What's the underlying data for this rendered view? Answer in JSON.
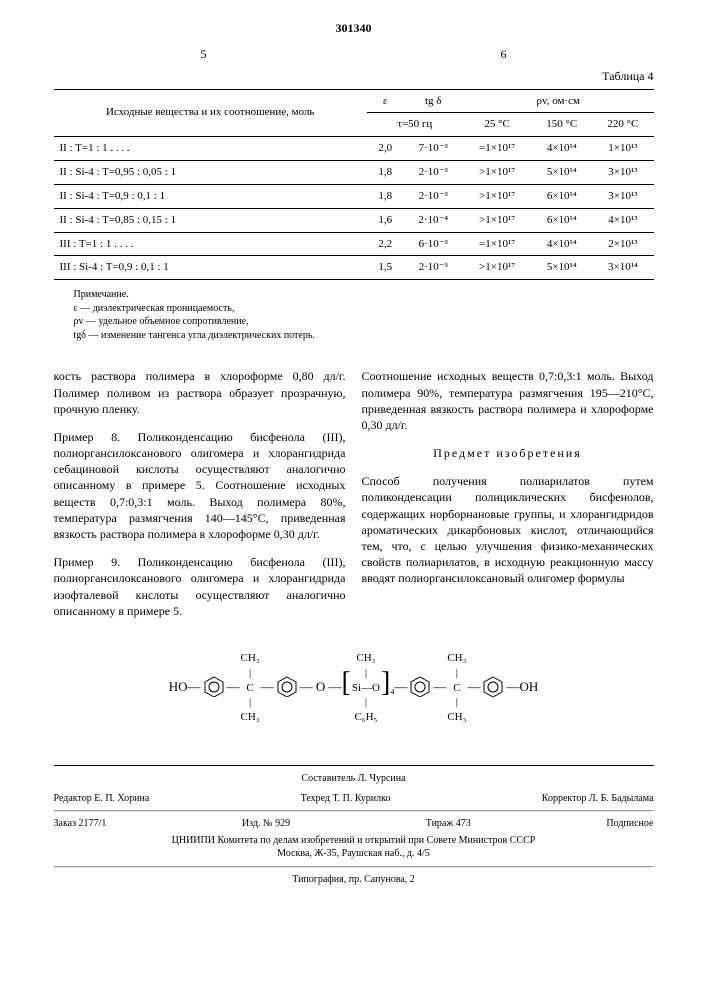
{
  "doc_number": "301340",
  "col_left_num": "5",
  "col_right_num": "6",
  "table_label": "Таблица 4",
  "table": {
    "head1": "Исходные вещества и их соотношение, моль",
    "head2": "ε",
    "head3": "tg δ",
    "head4": "ρv, ом·см",
    "subhead_tau": "τ=50 гц",
    "sub25": "25 °C",
    "sub150": "150 °C",
    "sub220": "220 °C",
    "rows": [
      {
        "c0": "II : T=1 : 1 . . . .",
        "c1": "2,0",
        "c2": "7·10⁻³",
        "c3": "=1×10¹⁷",
        "c4": "4×10¹⁴",
        "c5": "1×10¹³"
      },
      {
        "c0": "II : Si-4 : T=0,95 : 0,05 : 1",
        "c1": "1,8",
        "c2": "2·10⁻³",
        "c3": ">1×10¹⁷",
        "c4": "5×10¹⁴",
        "c5": "3×10¹³"
      },
      {
        "c0": "II : Si-4 : T=0,9 : 0,1 : 1",
        "c1": "1,8",
        "c2": "2·10⁻³",
        "c3": ">1×10¹⁷",
        "c4": "6×10¹⁴",
        "c5": "3×10¹³"
      },
      {
        "c0": "II : Si-4 : T=0,85 : 0,15 : 1",
        "c1": "1,6",
        "c2": "2·10⁻⁴",
        "c3": ">1×10¹⁷",
        "c4": "6×10¹⁴",
        "c5": "4×10¹³"
      },
      {
        "c0": "III : T=1 : 1 . . . .",
        "c1": "2,2",
        "c2": "6·10⁻³",
        "c3": "=1×10¹⁷",
        "c4": "4×10¹⁴",
        "c5": "2×10¹³"
      },
      {
        "c0": "III : Si-4 : T=0,9 : 0,1 : 1",
        "c1": "1,5",
        "c2": "2·10⁻³",
        "c3": ">1×10¹⁷",
        "c4": "5×10¹⁴",
        "c5": "3×10¹⁴"
      }
    ]
  },
  "note_title": "Примечание.",
  "note_l1": "ε — диэлектрическая проницаемость,",
  "note_l2": "ρv — удельное объемное сопротивление,",
  "note_l3": "tgδ — изменение тангенса угла диэлектрических потерь.",
  "left_p1": "кость раствора полимера в хлороформе 0,80 дл/г. Полимер поливом из раствора образует прозрачную, прочную пленку.",
  "left_p2": "Пример 8. Поликонденсацию бисфенола (III), полиоргансилоксанового олигомера и хлорангидрида себациновой кислоты осуществляют аналогично описанному в примере 5. Соотношение исходных веществ 0,7:0,3:1 моль. Выход полимера 80%, температура размягчения 140—145°C, приведенная вязкость раствора полимера в хлороформе 0,30 дл/г.",
  "left_p3": "Пример 9. Поликонденсацию бисфенола (III), полиоргансилоксанового олигомера и хлорангидрида изофталевой кислоты осуществляют аналогично описанному в примере 5.",
  "right_p1": "Соотношение исходных веществ 0,7:0,3:1 моль. Выход полимера 90%, температура размягчения 195—210°C, приведенная вязкость раствора полимера и хлороформе 0,30 дл/г.",
  "claims_title": "Предмет изобретения",
  "right_p2": "Способ получения полиарилатов путем поликонденсации полициклических бисфенолов, содержащих норборнановые группы, и хлорангидридов ароматических дикарбоновых кислот, отличающийся тем, что, с целью улучшения физико-механических свойств полиарилатов, в исходную реакционную массу вводят полиоргансилоксановый олигомер формулы",
  "footer": {
    "composer": "Составитель Л. Чурсина",
    "editor": "Редактор Е. П. Хорина",
    "tech": "Техред Т. П. Курилко",
    "corr": "Корректор Л. Б. Бадылама",
    "order": "Заказ 2177/1",
    "izd": "Изд. № 929",
    "tiraj": "Тираж 473",
    "sub": "Подписное",
    "org": "ЦНИИПИ Комитета по делам изобретений и открытий при Совете Министров СССР",
    "addr": "Москва, Ж-35, Раушская наб., д. 4/5",
    "typo": "Типография, пр. Сапунова, 2"
  }
}
